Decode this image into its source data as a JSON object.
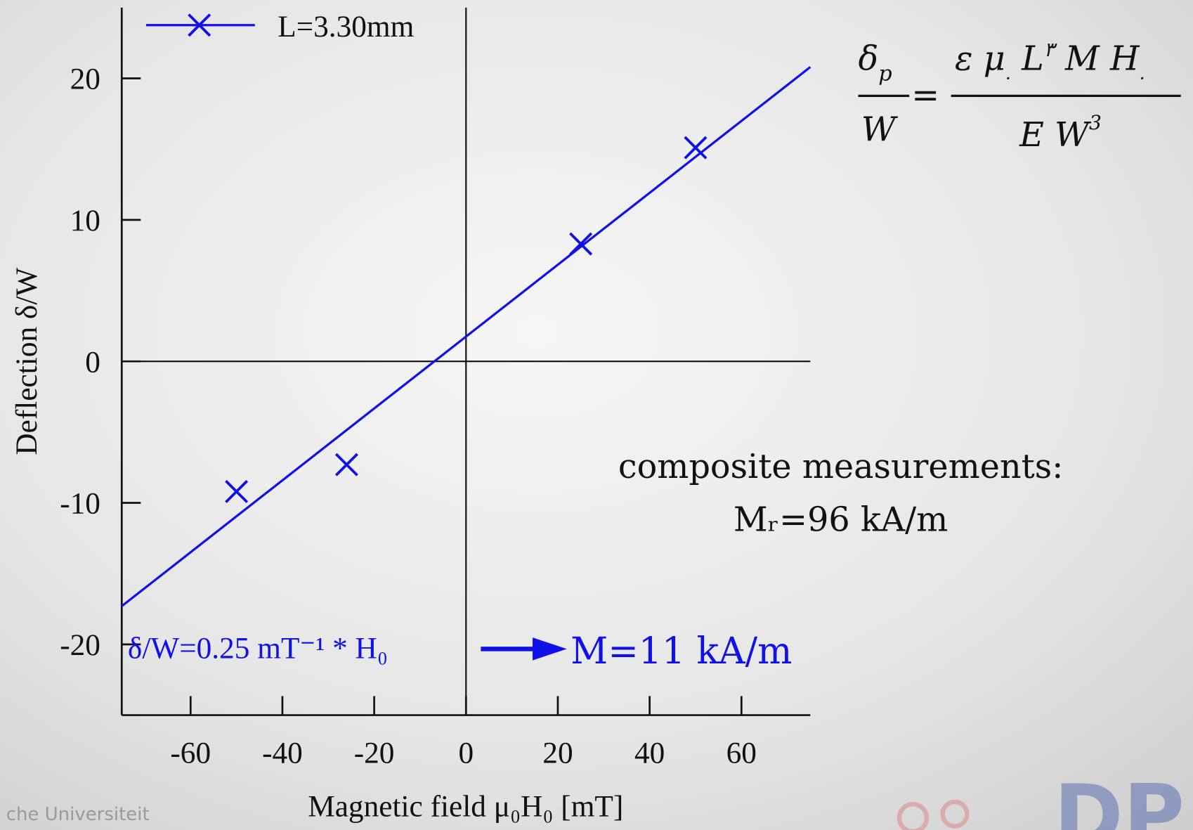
{
  "chart_data": {
    "type": "scatter",
    "xlabel": "Magnetic field μ₀H₀ [mT]",
    "ylabel": "Deflection δ/W",
    "xlim": [
      -75,
      75
    ],
    "ylim": [
      -25,
      25
    ],
    "xticks": [
      -60,
      -40,
      -20,
      0,
      20,
      40,
      60
    ],
    "yticks": [
      -20,
      -10,
      0,
      10,
      20
    ],
    "series": [
      {
        "name": "L=3.30mm",
        "color": "#1010e8",
        "x": [
          -50,
          -26,
          25,
          50
        ],
        "values": [
          -9.2,
          -7.3,
          8.3,
          15.1
        ]
      }
    ],
    "fit": {
      "x": [
        -75,
        75
      ],
      "values": [
        -17.3,
        20.8
      ],
      "color": "#1010e8"
    },
    "fit_label": "δ/W=0.25 mT⁻¹ * H₀",
    "result": "M=11 kA/m"
  },
  "formula": {
    "lhs_num": "δ",
    "lhs_sub": "p",
    "lhs_den": "W",
    "equals": "=",
    "rhs_num": [
      "ɛ μ",
      ".",
      " L",
      "٣",
      " M H",
      "."
    ],
    "rhs_den": [
      "E W",
      "3"
    ]
  },
  "notes": [
    "composite measurements:",
    "Mᵣ=96 kA/m"
  ],
  "footer": "che Universiteit"
}
